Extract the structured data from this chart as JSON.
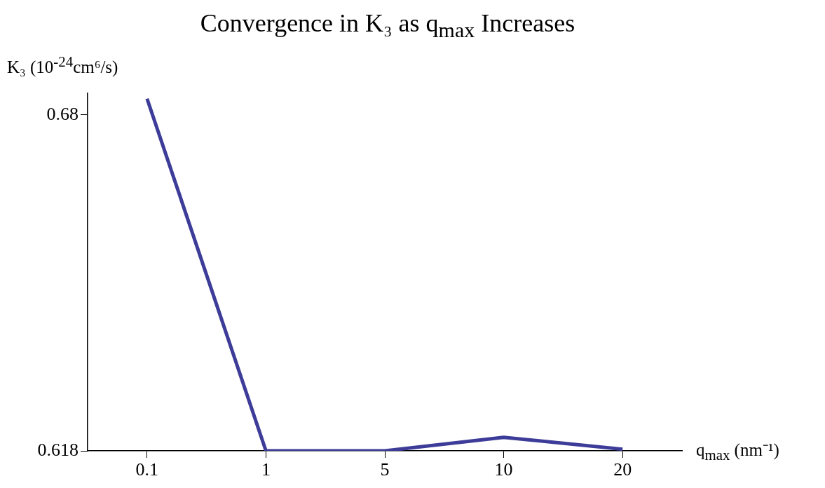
{
  "chart_data": {
    "type": "line",
    "title": "Convergence in K₃ as q$_{max}$ Increases",
    "xlabel": "q$_{max}$ (nm⁻¹)",
    "ylabel": "K₃ (10$^{-24}$cm⁶/s)",
    "categories": [
      "0.1",
      "1",
      "5",
      "10",
      "20"
    ],
    "series": [
      {
        "color": "#3d3d99",
        "values": [
          0.683,
          0.618,
          0.618,
          0.6205,
          0.6183
        ]
      }
    ],
    "ylim": [
      0.618,
      0.684
    ],
    "yticks": [
      0.618,
      0.68
    ],
    "marker": "none",
    "line_style": "solid"
  }
}
